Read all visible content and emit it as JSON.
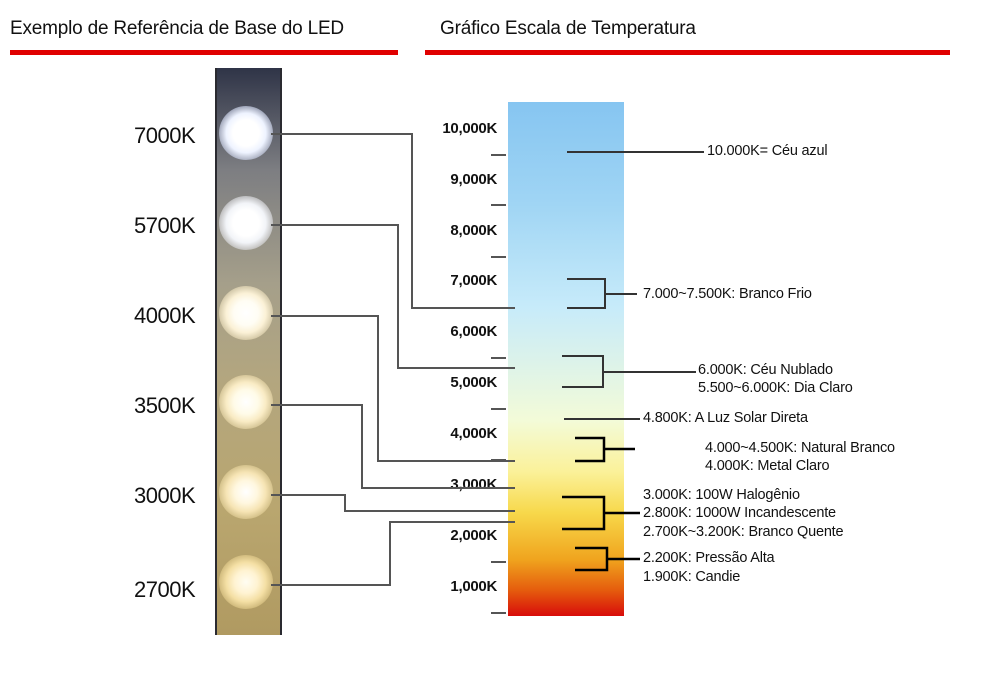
{
  "headers": {
    "left": "Exemplo de Referência de Base do LED",
    "right": "Gráfico Escala de Temperatura"
  },
  "colors": {
    "rule": "#e00000",
    "lines": "#555555",
    "brackets": "#000000"
  },
  "led_labels": [
    "7000K",
    "5700K",
    "4000K",
    "3500K",
    "3000K",
    "2700K"
  ],
  "scale_ticks": [
    "10,000K",
    "9,000K",
    "8,000K",
    "7,000K",
    "6,000K",
    "5,000K",
    "4,000K",
    "3,000K",
    "2,000K",
    "1,000K"
  ],
  "annotations": {
    "a1": "10.000K= Céu azul",
    "a2": "7.000~7.500K: Branco Frio",
    "a3_1": "6.000K: Céu Nublado",
    "a3_2": "5.500~6.000K: Dia Claro",
    "a4": "4.800K: A Luz Solar Direta",
    "a5_1": "4.000~4.500K: Natural Branco",
    "a5_2": "4.000K: Metal Claro",
    "a6_1": "3.000K: 100W Halogênio",
    "a6_2": "2.800K: 1000W Incandescente",
    "a6_3": "2.700K~3.200K: Branco Quente",
    "a7_1": "2.200K: Pressão Alta",
    "a7_2": "1.900K: Candie"
  }
}
